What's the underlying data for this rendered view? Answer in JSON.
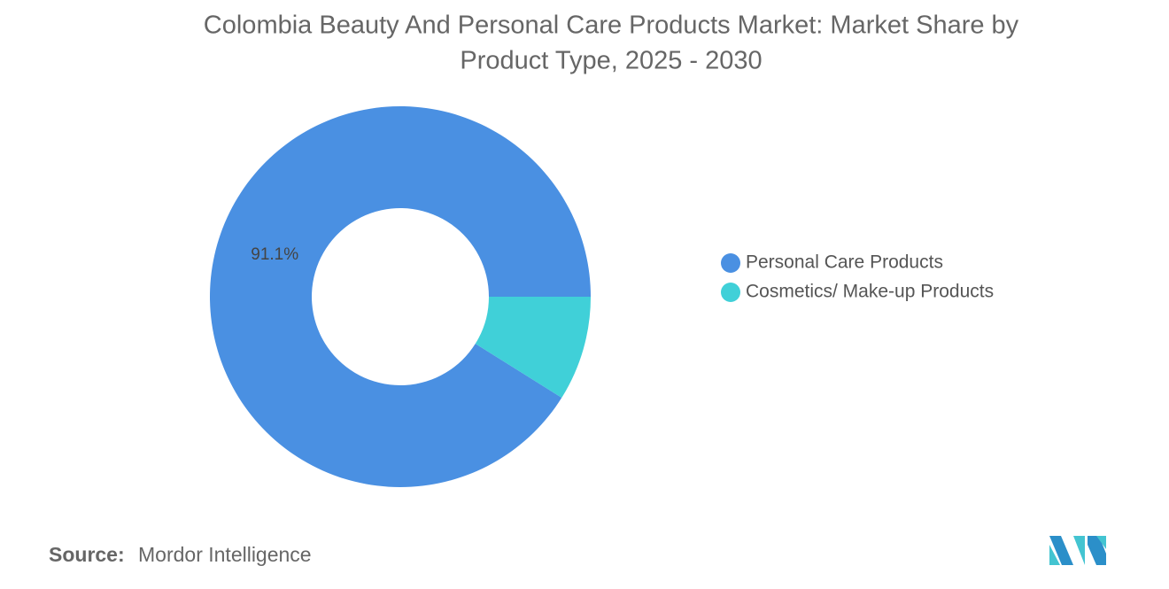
{
  "chart_data": {
    "type": "donut",
    "title": [
      "Colombia Beauty And Personal Care Products Market: Market Share by",
      "Product Type, 2025 - 2030"
    ],
    "series": [
      {
        "name": "Personal Care Products",
        "color": "#4a90e2",
        "value": 91.1,
        "value_label": "91.1%"
      },
      {
        "name": "Cosmetics/ Make-up Products",
        "color": "#40d0d8",
        "value": 8.9
      }
    ],
    "source_label": "Source:",
    "source": "Mordor Intelligence"
  }
}
